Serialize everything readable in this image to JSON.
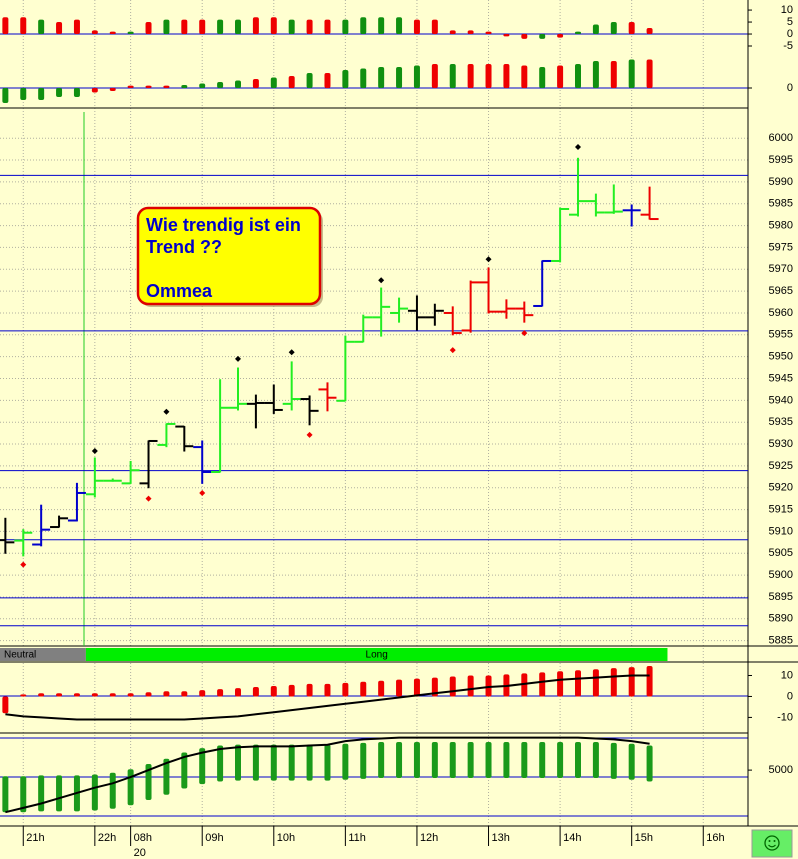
{
  "chart_data": [
    {
      "type": "ohlc",
      "x": [
        0,
        1,
        2,
        3,
        4,
        5,
        6,
        7,
        8,
        9,
        10,
        11,
        12,
        13,
        14,
        15,
        16,
        17,
        18,
        19,
        20,
        21,
        22,
        23,
        24,
        25,
        26,
        27,
        28,
        29,
        30,
        31,
        32,
        33,
        34,
        35,
        36
      ],
      "open": [
        5908,
        5907.9,
        5907,
        5911,
        5912.5,
        5918.5,
        5921.6,
        5921,
        5921,
        5929.8,
        5934,
        5929.3,
        5923.6,
        5938.3,
        5939.2,
        5939.4,
        5939.2,
        5940.3,
        5942.5,
        5939.9,
        5953.4,
        5959,
        5960,
        5960.5,
        5959,
        5960,
        5956,
        5967,
        5960.3,
        5961,
        5961.6,
        5971.9,
        5982.5,
        5985.6,
        5983,
        5983.5,
        5982.5
      ],
      "high": [
        5913,
        5910.4,
        5916,
        5913.5,
        5921,
        5926.8,
        5922,
        5926,
        5930.7,
        5934.6,
        5934,
        5930.7,
        5944.7,
        5947.4,
        5941.2,
        5943.5,
        5948.8,
        5941,
        5944,
        5954.7,
        5959.5,
        5965.7,
        5963.4,
        5963.9,
        5962,
        5961.4,
        5967.3,
        5970.3,
        5963,
        5962.5,
        5971.9,
        5984,
        5995.4,
        5987.2,
        5989.3,
        5984.7,
        5988.8
      ],
      "low": [
        5905,
        5904.4,
        5906.7,
        5911,
        5912.4,
        5917.9,
        5921.5,
        5921,
        5920,
        5929.4,
        5928.4,
        5921,
        5923.6,
        5937.8,
        5933.7,
        5937,
        5937.8,
        5934.4,
        5937.6,
        5939.9,
        5953.4,
        5954.7,
        5957.9,
        5956.1,
        5957.2,
        5955,
        5955.6,
        5960,
        5958.8,
        5957.9,
        5961.6,
        5971.7,
        5982.2,
        5982.2,
        5982.8,
        5979.9,
        5981.5
      ],
      "close": [
        5907.5,
        5909.7,
        5910.4,
        5913,
        5918.8,
        5921.6,
        5921.6,
        5924,
        5930.7,
        5934.6,
        5929.5,
        5923.6,
        5938.3,
        5939.2,
        5939.4,
        5937.8,
        5940.3,
        5937.6,
        5940.6,
        5953.4,
        5959,
        5961.4,
        5961,
        5959,
        5960.5,
        5955.4,
        5967,
        5960.3,
        5961,
        5959.5,
        5971.9,
        5983.8,
        5985.6,
        5983,
        5983.2,
        5983.5,
        5981.5
      ],
      "colors": [
        "#000000",
        "#22ee22",
        "#0000cc",
        "#000000",
        "#0000cc",
        "#22ee22",
        "#22ee22",
        "#22ee22",
        "#000000",
        "#22ee22",
        "#000000",
        "#0000cc",
        "#22ee22",
        "#22ee22",
        "#000000",
        "#000000",
        "#22ee22",
        "#000000",
        "#ee0000",
        "#22ee22",
        "#22ee22",
        "#22ee22",
        "#22ee22",
        "#000000",
        "#000000",
        "#ee0000",
        "#ee0000",
        "#ee0000",
        "#ee0000",
        "#ee0000",
        "#0000cc",
        "#22ee22",
        "#22ee22",
        "#22ee22",
        "#22ee22",
        "#0000cc",
        "#ee0000"
      ],
      "pivot_high": [
        null,
        null,
        null,
        null,
        null,
        5928.4,
        null,
        null,
        null,
        5937.4,
        null,
        null,
        null,
        5949.5,
        null,
        null,
        5951,
        null,
        null,
        null,
        null,
        5967.5,
        null,
        null,
        null,
        null,
        null,
        5972.3,
        null,
        null,
        null,
        null,
        5998,
        null,
        null,
        null,
        null
      ],
      "pivot_low": [
        null,
        5902.4,
        null,
        null,
        null,
        null,
        null,
        null,
        5917.5,
        null,
        null,
        5918.8,
        null,
        null,
        null,
        null,
        null,
        5932.1,
        null,
        null,
        null,
        null,
        null,
        null,
        null,
        5951.5,
        null,
        null,
        null,
        5955.4,
        null,
        null,
        null,
        null,
        null,
        null,
        null
      ],
      "pivot_high_color": "#000000",
      "pivot_low_color": "#ee0000",
      "levels": [
        5991.5,
        5955.9,
        5923.9,
        5908.1,
        5894.8,
        5888.4
      ],
      "level_color": "#0000cc",
      "ylim": [
        5884,
        6006
      ],
      "yticks": [
        5885,
        5890,
        5895,
        5900,
        5905,
        5910,
        5915,
        5920,
        5925,
        5930,
        5935,
        5940,
        5945,
        5950,
        5955,
        5960,
        5965,
        5970,
        5975,
        5980,
        5985,
        5990,
        5995,
        6000
      ],
      "xlim": [
        -0.3,
        41.5
      ],
      "xticks": [
        {
          "value": 1,
          "label": "21h"
        },
        {
          "value": 5,
          "label": "22h"
        },
        {
          "value": 7,
          "label": "08h"
        },
        {
          "value": 11,
          "label": "09h"
        },
        {
          "value": 15,
          "label": "10h"
        },
        {
          "value": 19,
          "label": "11h"
        },
        {
          "value": 23,
          "label": "12h"
        },
        {
          "value": 27,
          "label": "13h"
        },
        {
          "value": 31,
          "label": "14h"
        },
        {
          "value": 35,
          "label": "15h"
        },
        {
          "value": 39,
          "label": "16h"
        }
      ],
      "date_label": "20",
      "regimes": [
        {
          "label": "Neutral",
          "start": -0.5,
          "end": 4.5,
          "color": "#808080"
        },
        {
          "label": "Long",
          "start": 4.5,
          "end": 37,
          "color": "#00ee00"
        }
      ],
      "annotation": [
        "Wie trendig ist ein",
        "Trend ??",
        "Ommea"
      ],
      "grid": true
    },
    {
      "type": "bar",
      "values": [
        7,
        7,
        6,
        5,
        6,
        1.5,
        1,
        1,
        5,
        6,
        6,
        6,
        6,
        6,
        7,
        7,
        6,
        6,
        6,
        6,
        7,
        7,
        7,
        6,
        6,
        1.5,
        1.5,
        1,
        -1,
        -2,
        -2,
        -1.5,
        1,
        4,
        5,
        5,
        2.5
      ],
      "colors": [
        "#ee0000",
        "#ee0000",
        "#109010",
        "#ee0000",
        "#ee0000",
        "#ee0000",
        "#ee0000",
        "#109010",
        "#ee0000",
        "#109010",
        "#ee0000",
        "#ee0000",
        "#109010",
        "#109010",
        "#ee0000",
        "#ee0000",
        "#109010",
        "#ee0000",
        "#ee0000",
        "#109010",
        "#109010",
        "#109010",
        "#109010",
        "#ee0000",
        "#ee0000",
        "#ee0000",
        "#ee0000",
        "#ee0000",
        "#ee0000",
        "#ee0000",
        "#109010",
        "#ee0000",
        "#109010",
        "#109010",
        "#109010",
        "#ee0000",
        "#ee0000"
      ],
      "ylim": [
        -7.5,
        14.2
      ],
      "yticks": [
        10,
        5,
        0,
        -5
      ]
    },
    {
      "type": "bar",
      "values": [
        -5,
        -4,
        -4,
        -3,
        -3,
        -1.5,
        -1,
        0.8,
        0.8,
        0.8,
        1,
        1.5,
        2,
        2.5,
        3,
        3.5,
        4,
        5,
        5,
        6,
        6.5,
        7,
        7,
        7.5,
        8,
        8,
        8,
        8,
        8,
        7.5,
        7,
        7.5,
        8,
        9,
        9,
        9.5,
        9.5
      ],
      "colors": [
        "#109010",
        "#109010",
        "#109010",
        "#109010",
        "#109010",
        "#ee0000",
        "#ee0000",
        "#ee0000",
        "#ee0000",
        "#ee0000",
        "#109010",
        "#109010",
        "#109010",
        "#109010",
        "#ee0000",
        "#109010",
        "#ee0000",
        "#109010",
        "#ee0000",
        "#109010",
        "#109010",
        "#109010",
        "#109010",
        "#109010",
        "#ee0000",
        "#109010",
        "#ee0000",
        "#ee0000",
        "#ee0000",
        "#ee0000",
        "#109010",
        "#ee0000",
        "#109010",
        "#109010",
        "#ee0000",
        "#109010",
        "#ee0000"
      ],
      "ylim": [
        -6,
        12
      ],
      "yticks": [
        0
      ]
    },
    {
      "type": "bar",
      "values": [
        -8,
        1,
        1.5,
        1.5,
        1.5,
        1.5,
        1.5,
        1.5,
        2,
        2.5,
        2.5,
        3,
        3.5,
        4,
        4.5,
        5,
        5.5,
        6,
        6,
        6.5,
        7,
        7.5,
        8,
        8.5,
        9,
        9.5,
        10,
        10,
        10.5,
        11,
        11.5,
        12,
        12.5,
        13,
        13.5,
        14,
        14.5
      ],
      "color": "#ee0000",
      "line": [
        -8.5,
        -9.5,
        -10,
        -10.5,
        -11,
        -11,
        -11,
        -11,
        -11,
        -11,
        -11,
        -10.5,
        -10,
        -9.5,
        -8.5,
        -7.5,
        -6.5,
        -5.5,
        -4.5,
        -3.5,
        -2.5,
        -1.5,
        -0.5,
        0.5,
        1.5,
        2.5,
        3.5,
        4.5,
        5,
        6,
        7,
        8,
        8.5,
        9,
        9.5,
        10,
        10
      ],
      "line_color": "#000000",
      "ylim": [
        -16,
        15
      ],
      "yticks": [
        10,
        0,
        -10
      ]
    },
    {
      "type": "bar",
      "lows": [
        200,
        200,
        300,
        300,
        300,
        400,
        600,
        1000,
        1600,
        2200,
        2900,
        3400,
        3700,
        3800,
        3800,
        3800,
        3800,
        3800,
        3800,
        3900,
        4000,
        4100,
        4100,
        4100,
        4100,
        4100,
        4100,
        4100,
        4100,
        4100,
        4100,
        4100,
        4100,
        4100,
        4000,
        3900,
        3700
      ],
      "values": [
        4300,
        4300,
        4400,
        4400,
        4400,
        4500,
        4700,
        5100,
        5700,
        6300,
        7000,
        7500,
        7800,
        7900,
        7900,
        7900,
        7900,
        7900,
        7900,
        8000,
        8100,
        8200,
        8200,
        8200,
        8200,
        8200,
        8200,
        8200,
        8200,
        8200,
        8200,
        8200,
        8200,
        8200,
        8100,
        8000,
        7800
      ],
      "color": "#1a9a1a",
      "line": [
        200,
        700,
        1200,
        1800,
        2400,
        3000,
        3500,
        4200,
        5000,
        5800,
        6500,
        7000,
        7400,
        7600,
        7700,
        7700,
        7700,
        7800,
        7900,
        8300,
        8500,
        8600,
        8700,
        8700,
        8700,
        8700,
        8700,
        8700,
        8700,
        8700,
        8700,
        8700,
        8700,
        8600,
        8500,
        8300,
        8000
      ],
      "line_color": "#000000",
      "ylim": [
        0,
        9000
      ],
      "yticks": [
        5000
      ]
    }
  ]
}
